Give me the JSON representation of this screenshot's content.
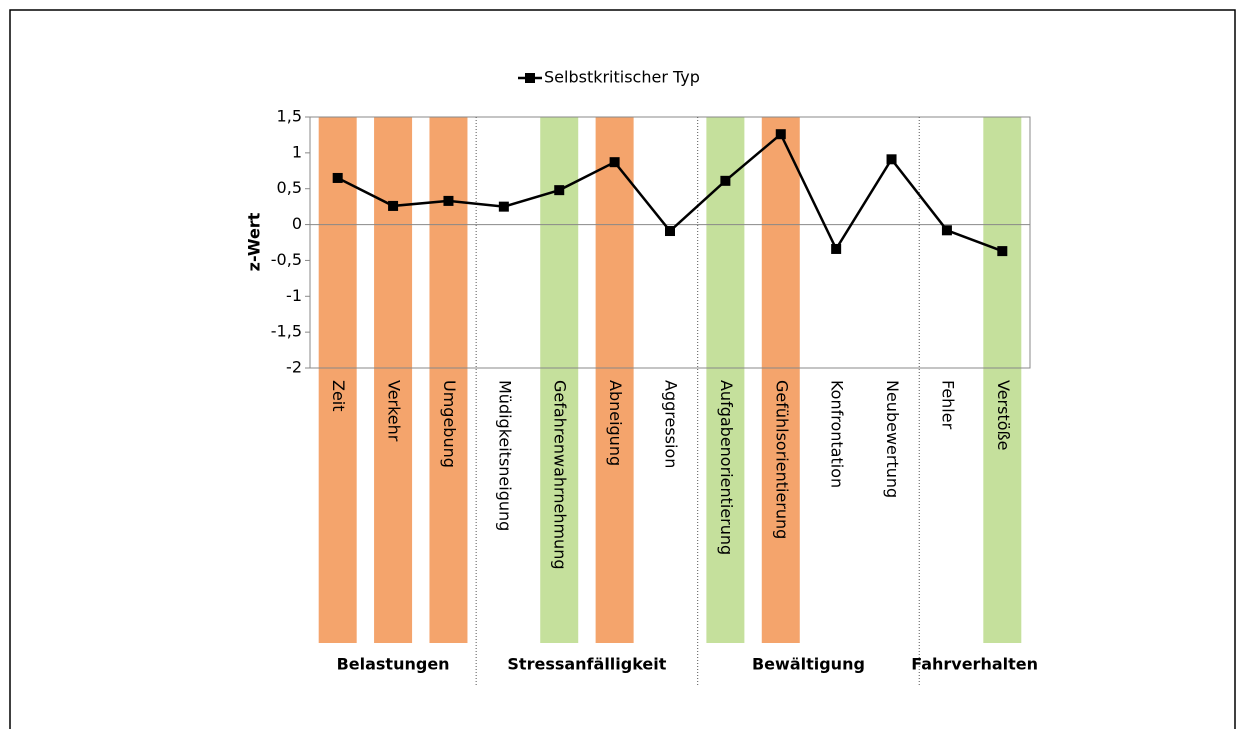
{
  "chart_data": {
    "type": "line",
    "y_axis_label": "z-Wert",
    "categories": [
      "Zeit",
      "Verkehr",
      "Umgebung",
      "Müdigkeitsneigung",
      "Gefahrenwahrnehmung",
      "Abneigung",
      "Aggression",
      "Aufgabenorientierung",
      "Gefühlsorientierung",
      "Konfrontation",
      "Neubewertung",
      "Fehler",
      "Verstöße"
    ],
    "category_groups": [
      "Belastungen",
      "Belastungen",
      "Belastungen",
      "Stressanfälligkeit",
      "Stressanfälligkeit",
      "Stressanfälligkeit",
      "Stressanfälligkeit",
      "Bewältigung",
      "Bewältigung",
      "Bewältigung",
      "Bewältigung",
      "Fahrverhalten",
      "Fahrverhalten"
    ],
    "highlight_colors": [
      "#f4a46c",
      "#f4a46c",
      "#f4a46c",
      null,
      "#c5e09c",
      "#f4a46c",
      null,
      "#c5e09c",
      "#f4a46c",
      null,
      null,
      null,
      "#c5e09c"
    ],
    "series": [
      {
        "name": "Selbstkritischer Typ",
        "color": "#000000",
        "values": [
          0.65,
          0.26,
          0.33,
          0.25,
          0.48,
          0.87,
          -0.09,
          0.61,
          1.26,
          -0.34,
          0.91,
          -0.08,
          -0.37
        ]
      }
    ],
    "ylim": [
      -2,
      1.5
    ],
    "yticks": [
      -2,
      {
        "value": -1.5,
        "label": "-1,5"
      },
      -1,
      {
        "value": -0.5,
        "label": "-0,5"
      },
      0,
      {
        "value": 0.5,
        "label": "0,5"
      },
      1,
      {
        "value": 1.5,
        "label": "1,5"
      }
    ],
    "legend": "top"
  }
}
